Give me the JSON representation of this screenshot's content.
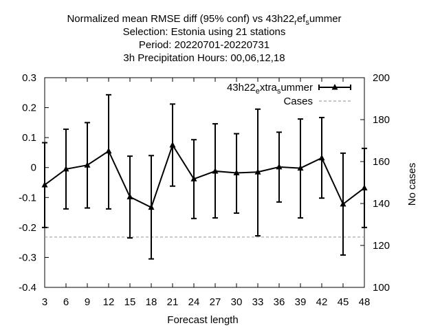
{
  "chart_data": {
    "type": "line",
    "title_lines": [
      "Normalized mean RMSE diff (95% conf) vs 43h22_ref_summer",
      "Selection: Estonia using    21 stations",
      "Period: 20220701-20220731",
      "3h Precipitation   Hours:  00,06,12,18"
    ],
    "xlabel": "Forecast length",
    "ylabel": "",
    "y2label": "No cases",
    "x": [
      3,
      6,
      9,
      12,
      15,
      18,
      21,
      24,
      27,
      30,
      33,
      36,
      39,
      42,
      45,
      48
    ],
    "xticks": [
      3,
      6,
      9,
      12,
      15,
      18,
      21,
      24,
      27,
      30,
      33,
      36,
      39,
      42,
      45,
      48
    ],
    "ylim": [
      -0.4,
      0.3
    ],
    "yticks": [
      -0.4,
      -0.3,
      -0.2,
      -0.1,
      0,
      0.1,
      0.2,
      0.3
    ],
    "ytick_labels": [
      "-0.4",
      "-0.3",
      "-0.2",
      "-0.1",
      "0",
      "0.1",
      "0.2",
      "0.3"
    ],
    "y2lim": [
      100,
      200
    ],
    "y2ticks": [
      100,
      120,
      140,
      160,
      180,
      200
    ],
    "series": [
      {
        "name": "43h22_extra_summer",
        "color": "#000000",
        "marker": "triangle",
        "values": [
          -0.058,
          -0.005,
          0.008,
          0.055,
          -0.098,
          -0.133,
          0.075,
          -0.038,
          -0.012,
          -0.018,
          -0.015,
          0.002,
          -0.002,
          0.032,
          -0.122,
          -0.068
        ],
        "err_low": [
          -0.2,
          -0.138,
          -0.135,
          -0.138,
          -0.235,
          -0.305,
          -0.062,
          -0.17,
          -0.168,
          -0.152,
          -0.228,
          -0.115,
          -0.168,
          -0.102,
          -0.292,
          -0.2
        ],
        "err_high": [
          0.083,
          0.128,
          0.15,
          0.243,
          0.038,
          0.04,
          0.212,
          0.093,
          0.146,
          0.113,
          0.195,
          0.118,
          0.162,
          0.167,
          0.048,
          0.064
        ]
      },
      {
        "name": "Cases",
        "color": "#a0a0a0",
        "style": "dashed",
        "axis": "right",
        "values": [
          124,
          124,
          124,
          124,
          124,
          124,
          124,
          124,
          124,
          124,
          124,
          124,
          124,
          124,
          124,
          124
        ]
      }
    ],
    "legend_position": "top-right",
    "grid": false
  }
}
